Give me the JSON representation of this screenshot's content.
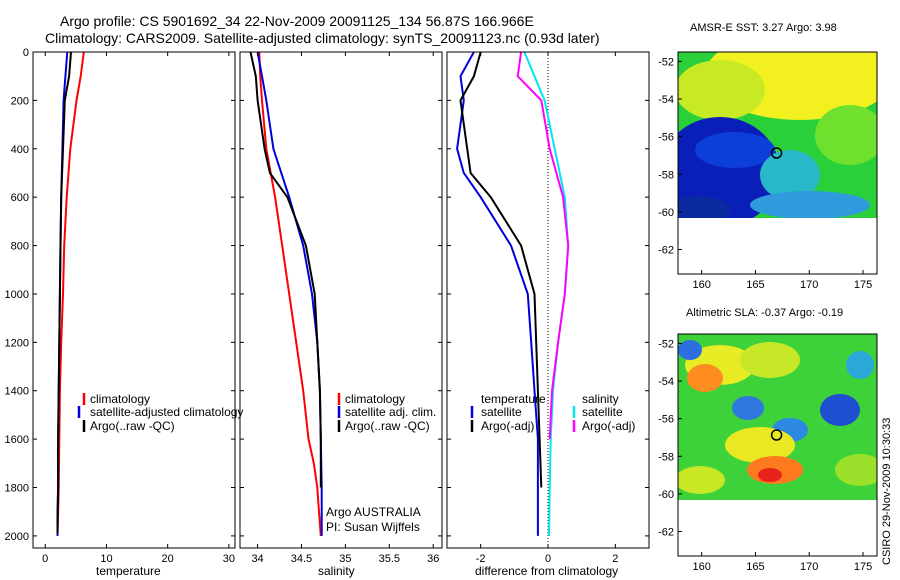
{
  "header": {
    "title_line1": "Argo profile: CS 5901692_34 22-Nov-2009 20091125_134 56.87S 166.966E",
    "title_line2": "Climatology: CARS2009. Satellite-adjusted climatology: synTS_20091123.nc (0.93d later)"
  },
  "side_stamp": "CSIRO 29-Nov-2009 10:30:33",
  "colors": {
    "climatology": "#ff0000",
    "satellite": "#0000dd",
    "argo": "#000000",
    "salinity_sat": "#00e5ee",
    "salinity_argo": "#ff00ff"
  },
  "chart_data": [
    {
      "id": "temperature",
      "type": "line",
      "xlabel": "temperature",
      "xlim": [
        -2,
        31
      ],
      "xticks": [
        0,
        10,
        20,
        30
      ],
      "ylim": [
        0,
        2050
      ],
      "y_reversed": true,
      "yticks": [
        0,
        200,
        400,
        600,
        800,
        1000,
        1200,
        1400,
        1600,
        1800,
        2000
      ],
      "legend": [
        "climatology",
        "satellite-adjusted climatology",
        "Argo(..raw -QC)"
      ],
      "series": [
        {
          "name": "climatology",
          "color": "climatology",
          "x": [
            6.3,
            5.8,
            5.1,
            4.1,
            3.5,
            3.1,
            2.9,
            2.6,
            2.4,
            2.3,
            2.2,
            2.1,
            2.0
          ],
          "y": [
            0,
            100,
            200,
            400,
            600,
            800,
            1000,
            1200,
            1400,
            1600,
            1800,
            1900,
            2000
          ]
        },
        {
          "name": "satellite-adjusted climatology",
          "color": "satellite",
          "x": [
            3.6,
            3.3,
            3.0,
            2.8,
            2.6,
            2.5,
            2.4,
            2.3,
            2.2,
            2.1,
            2.1,
            2.0,
            2.0
          ],
          "y": [
            0,
            100,
            200,
            400,
            600,
            800,
            1000,
            1200,
            1400,
            1600,
            1800,
            1900,
            2000
          ]
        },
        {
          "name": "Argo(..raw -QC)",
          "color": "argo",
          "x": [
            4.2,
            3.9,
            3.2,
            2.9,
            2.6,
            2.5,
            2.4,
            2.3,
            2.2,
            2.1,
            2.1,
            2.0
          ],
          "y": [
            0,
            100,
            200,
            400,
            600,
            800,
            1000,
            1200,
            1400,
            1600,
            1800,
            1990
          ]
        }
      ]
    },
    {
      "id": "salinity",
      "type": "line",
      "xlabel": "salinity",
      "xlim": [
        33.8,
        36.1
      ],
      "xticks": [
        34,
        34.5,
        35,
        35.5,
        36
      ],
      "ylim": [
        0,
        2050
      ],
      "y_reversed": true,
      "legend": [
        "climatology",
        "satellite adj. clim.",
        "Argo(..raw -QC)"
      ],
      "annotations": [
        "Argo AUSTRALIA",
        "PI: Susan Wijffels"
      ],
      "series": [
        {
          "name": "climatology",
          "color": "climatology",
          "x": [
            34.02,
            34.03,
            34.05,
            34.1,
            34.2,
            34.28,
            34.36,
            34.44,
            34.52,
            34.58,
            34.64,
            34.68,
            34.7,
            34.72
          ],
          "y": [
            0,
            100,
            200,
            400,
            600,
            800,
            1000,
            1200,
            1400,
            1600,
            1700,
            1800,
            1900,
            2000
          ]
        },
        {
          "name": "satellite adj. clim.",
          "color": "satellite",
          "x": [
            34.0,
            34.05,
            34.1,
            34.18,
            34.36,
            34.52,
            34.62,
            34.68,
            34.71,
            34.72,
            34.73,
            34.73
          ],
          "y": [
            0,
            100,
            200,
            400,
            600,
            800,
            1000,
            1200,
            1400,
            1600,
            1800,
            2000
          ]
        },
        {
          "name": "Argo(..raw -QC)",
          "color": "argo",
          "x": [
            33.92,
            33.98,
            34.0,
            34.08,
            34.14,
            34.34,
            34.55,
            34.65,
            34.68,
            34.71,
            34.72,
            34.72
          ],
          "y": [
            0,
            100,
            200,
            400,
            500,
            600,
            800,
            1000,
            1200,
            1400,
            1600,
            1800
          ]
        }
      ]
    },
    {
      "id": "difference",
      "type": "line",
      "xlabel": "difference from climatology",
      "xlim": [
        -3,
        3
      ],
      "xticks": [
        -2,
        0,
        2
      ],
      "ylim": [
        0,
        2050
      ],
      "y_reversed": true,
      "legend_left_title": "temperature",
      "legend_left": [
        "satellite",
        "Argo(-adj)"
      ],
      "legend_right_title": "salinity",
      "legend_right": [
        "satellite",
        "Argo(-adj)"
      ],
      "series": [
        {
          "name": "satellite",
          "group": "temperature",
          "color": "satellite",
          "x": [
            -2.2,
            -2.6,
            -2.5,
            -2.7,
            -2.5,
            -2.0,
            -1.1,
            -0.6,
            -0.5,
            -0.4,
            -0.3,
            -0.3,
            -0.3
          ],
          "y": [
            0,
            100,
            200,
            400,
            500,
            600,
            800,
            1000,
            1200,
            1400,
            1600,
            1800,
            2000
          ]
        },
        {
          "name": "Argo(-adj)",
          "group": "temperature",
          "color": "argo",
          "x": [
            -2.0,
            -2.2,
            -2.6,
            -2.4,
            -2.3,
            -1.7,
            -0.8,
            -0.4,
            -0.35,
            -0.3,
            -0.25,
            -0.2
          ],
          "y": [
            0,
            100,
            200,
            400,
            500,
            600,
            800,
            1000,
            1200,
            1400,
            1600,
            1800
          ]
        },
        {
          "name": "satellite",
          "group": "salinity",
          "color": "salinity_sat",
          "x": [
            -0.7,
            -0.4,
            -0.1,
            0.2,
            0.5,
            0.6,
            0.5,
            0.3,
            0.15,
            0.08,
            0.05,
            0.03
          ],
          "y": [
            0,
            100,
            200,
            400,
            600,
            800,
            1000,
            1200,
            1400,
            1600,
            1800,
            2000
          ]
        },
        {
          "name": "Argo(-adj)",
          "group": "salinity",
          "color": "salinity_argo",
          "x": [
            -0.8,
            -0.9,
            -0.2,
            0.05,
            0.45,
            0.6,
            0.5,
            0.3,
            0.12,
            0.05
          ],
          "y": [
            0,
            100,
            200,
            400,
            600,
            800,
            1000,
            1200,
            1400,
            1600
          ]
        }
      ]
    },
    {
      "id": "sst_map",
      "type": "heatmap",
      "title": "AMSR-E SST: 3.27 Argo: 3.98",
      "xlim": [
        157.8,
        176.3
      ],
      "ylim": [
        -63.3,
        -51.5
      ],
      "xticks": [
        160,
        165,
        170,
        175
      ],
      "yticks": [
        -52,
        -54,
        -56,
        -58,
        -60,
        -62
      ],
      "data_extent_lat": [
        -60,
        -51.5
      ],
      "marker": {
        "lon": 166.966,
        "lat": -56.87
      }
    },
    {
      "id": "sla_map",
      "type": "heatmap",
      "title": "Altimetric SLA: -0.37 Argo: -0.19",
      "xlim": [
        157.8,
        176.3
      ],
      "ylim": [
        -63.3,
        -51.5
      ],
      "xticks": [
        160,
        165,
        170,
        175
      ],
      "yticks": [
        -52,
        -54,
        -56,
        -58,
        -60,
        -62
      ],
      "data_extent_lat": [
        -60,
        -51.5
      ],
      "marker": {
        "lon": 166.966,
        "lat": -56.87
      }
    }
  ]
}
